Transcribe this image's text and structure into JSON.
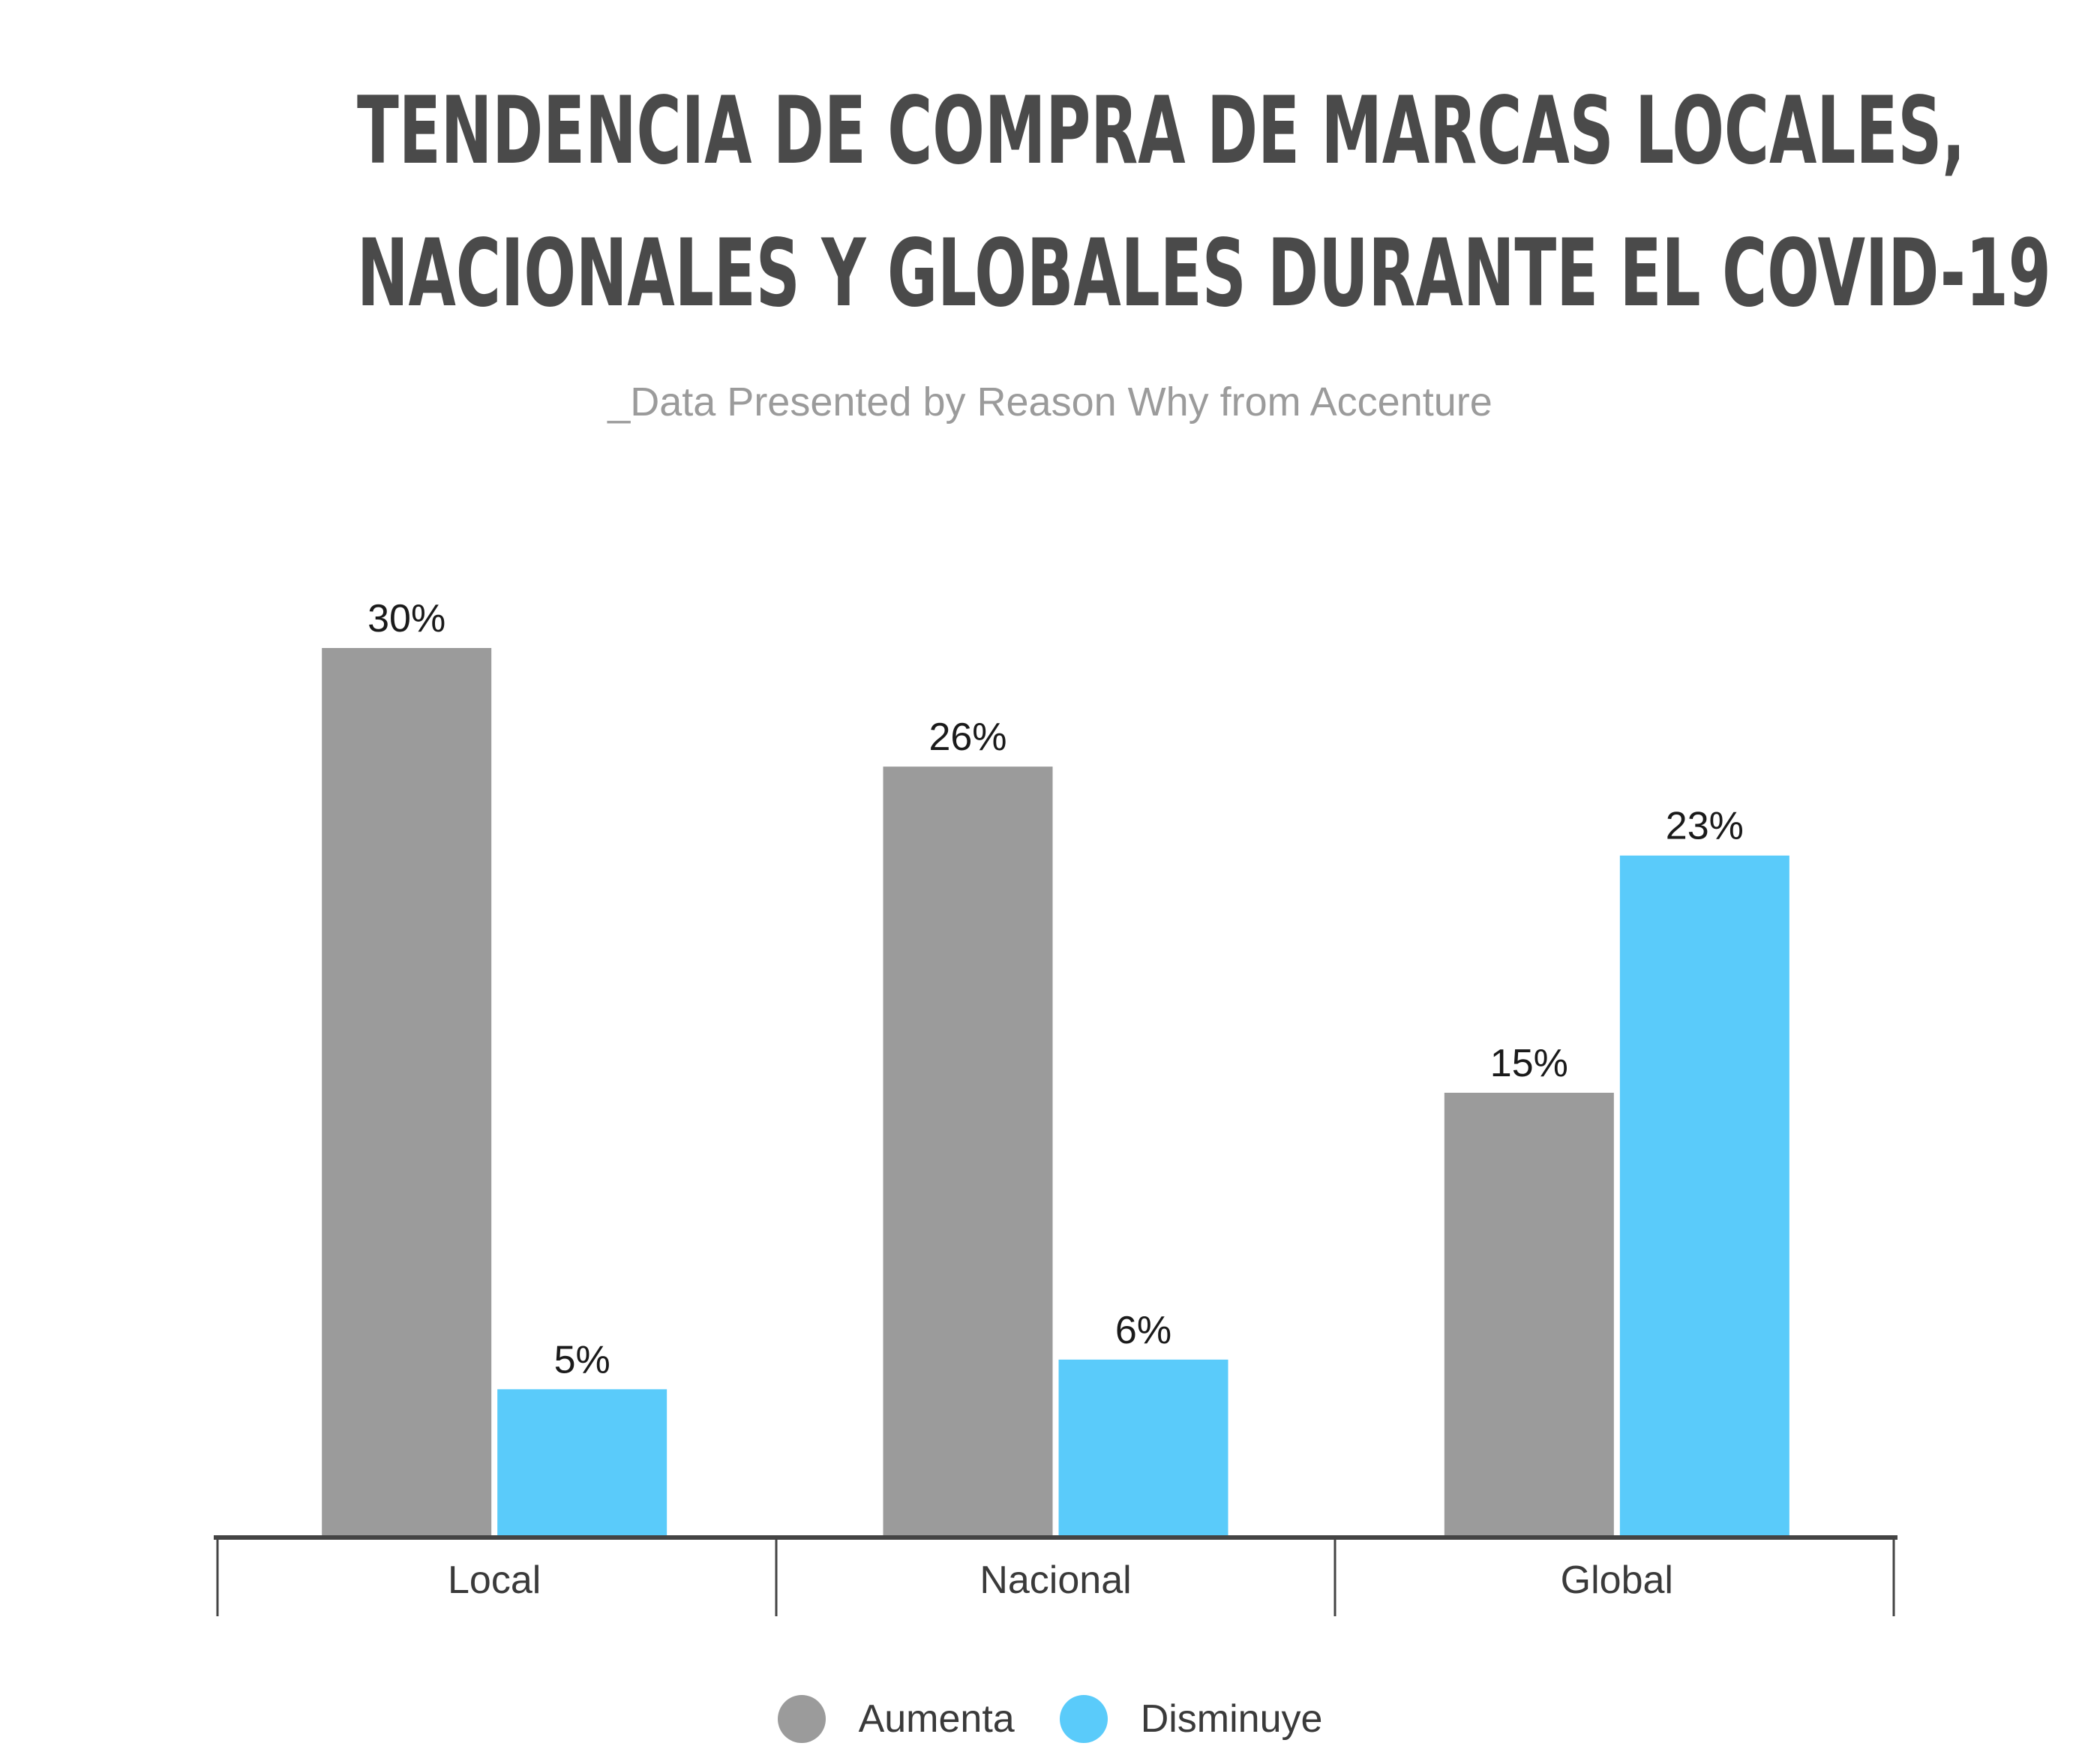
{
  "title_lines": [
    "TENDENCIA DE COMPRA DE MARCAS LOCALES,",
    "NACIONALES Y GLOBALES DURANTE EL COVID-19"
  ],
  "subtitle": "_Data Presented by Reason Why from Accenture",
  "colors": {
    "aumenta": "#9b9b9b",
    "disminuye": "#5acbfa",
    "axis": "#444444",
    "text": "#1a1a1a"
  },
  "chart_data": {
    "type": "bar",
    "title": "TENDENCIA DE COMPRA DE MARCAS LOCALES, NACIONALES Y GLOBALES DURANTE EL COVID-19",
    "subtitle": "_Data Presented by Reason Why from Accenture",
    "categories": [
      "Local",
      "Nacional",
      "Global"
    ],
    "series": [
      {
        "name": "Aumenta",
        "values": [
          30,
          26,
          15
        ],
        "labels": [
          "30%",
          "26%",
          "15%"
        ]
      },
      {
        "name": "Disminuye",
        "values": [
          5,
          6,
          23
        ],
        "labels": [
          "5%",
          "6%",
          "23%"
        ]
      }
    ],
    "ylim": [
      0,
      30
    ],
    "xlabel": "",
    "ylabel": "",
    "grid": false,
    "legend_position": "bottom-center"
  }
}
